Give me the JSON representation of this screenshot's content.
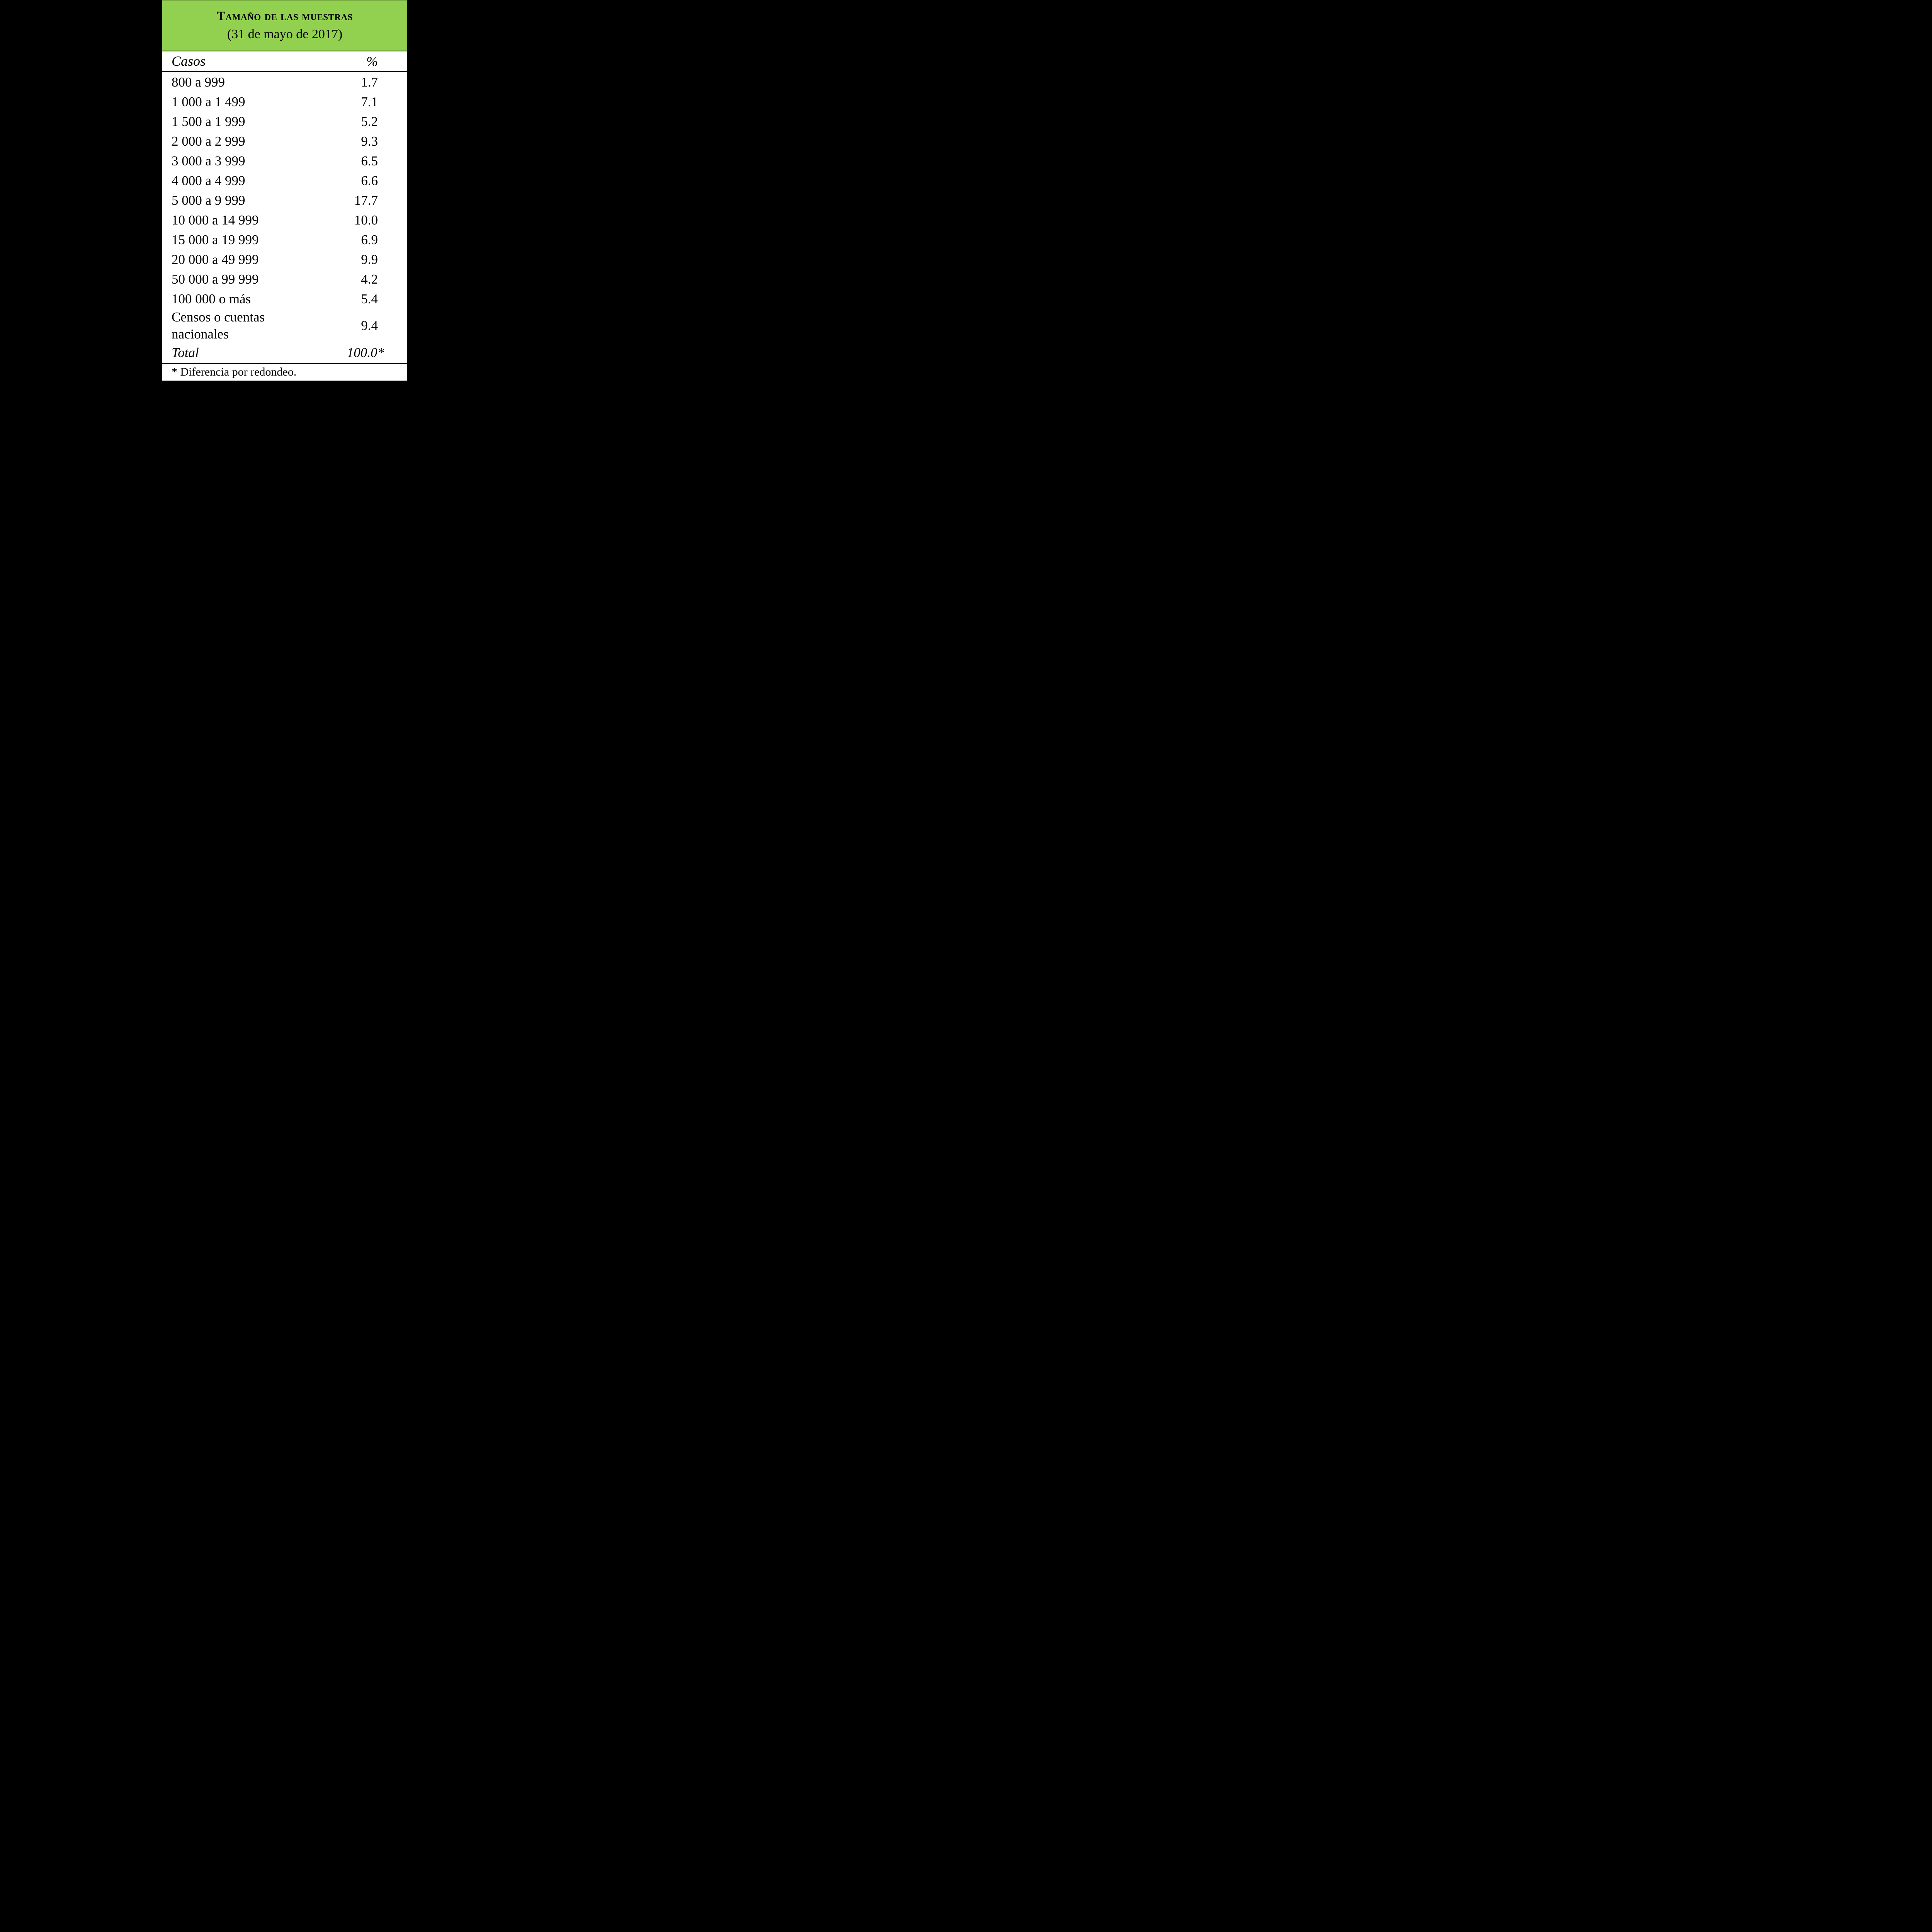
{
  "table": {
    "title": "Tamaño de las muestras",
    "subtitle": "(31 de mayo de 2017)",
    "columns": {
      "cases": "Casos",
      "percent": "%"
    },
    "rows": [
      {
        "label": "800 a 999",
        "value": "1.7"
      },
      {
        "label": "1 000 a 1 499",
        "value": "7.1"
      },
      {
        "label": "1 500 a 1 999",
        "value": "5.2"
      },
      {
        "label": "2 000 a 2 999",
        "value": "9.3"
      },
      {
        "label": "3 000 a 3 999",
        "value": "6.5"
      },
      {
        "label": "4 000 a 4 999",
        "value": "6.6"
      },
      {
        "label": "5 000 a 9 999",
        "value": "17.7"
      },
      {
        "label": "10 000 a 14 999",
        "value": "10.0"
      },
      {
        "label": "15 000 a 19 999",
        "value": "6.9"
      },
      {
        "label": "20 000 a 49 999",
        "value": "9.9"
      },
      {
        "label": "50 000 a 99 999",
        "value": "4.2"
      },
      {
        "label": "100 000 o más",
        "value": "5.4"
      },
      {
        "label": "Censos o cuentas nacionales",
        "value": "9.4"
      }
    ],
    "total": {
      "label": "Total",
      "value": "100.0*"
    },
    "footnote": "* Diferencia por redondeo.",
    "colors": {
      "header_green": "#92d050",
      "page_background": "#000000",
      "table_background": "#ffffff",
      "text": "#000000"
    }
  },
  "chart_data": {
    "type": "table",
    "title": "Tamaño de las muestras",
    "subtitle": "(31 de mayo de 2017)",
    "columns": [
      "Casos",
      "%"
    ],
    "categories": [
      "800 a 999",
      "1 000 a 1 499",
      "1 500 a 1 999",
      "2 000 a 2 999",
      "3 000 a 3 999",
      "4 000 a 4 999",
      "5 000 a 9 999",
      "10 000 a 14 999",
      "15 000 a 19 999",
      "20 000 a 49 999",
      "50 000 a 99 999",
      "100 000 o más",
      "Censos o cuentas nacionales"
    ],
    "values": [
      1.7,
      7.1,
      5.2,
      9.3,
      6.5,
      6.6,
      17.7,
      10.0,
      6.9,
      9.9,
      4.2,
      5.4,
      9.4
    ],
    "total": 100.0,
    "total_note": "* Diferencia por redondeo."
  }
}
